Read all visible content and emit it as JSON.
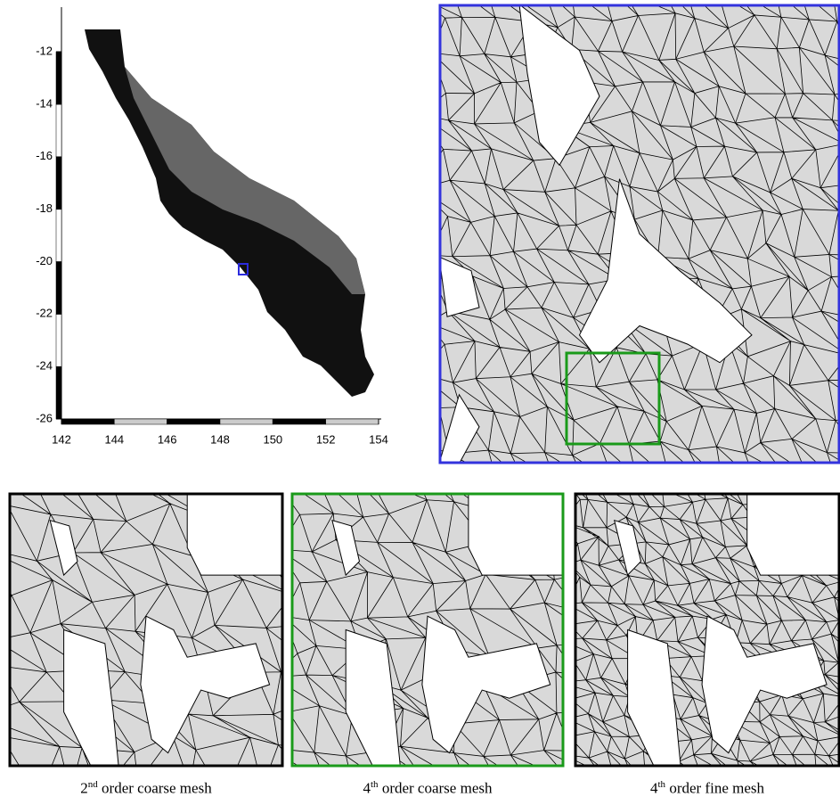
{
  "map": {
    "xlim": [
      142,
      154
    ],
    "ylim": [
      -26,
      -10.3
    ],
    "xticks": [
      142,
      144,
      146,
      148,
      150,
      152,
      154
    ],
    "yticks": [
      -26,
      -24,
      -22,
      -20,
      -18,
      -16,
      -14,
      -12
    ]
  },
  "captions": [
    {
      "order": "2",
      "suffix": "nd",
      "label": "order coarse mesh"
    },
    {
      "order": "4",
      "suffix": "th",
      "label": "order coarse mesh"
    },
    {
      "order": "4",
      "suffix": "th",
      "label": "order fine mesh"
    }
  ]
}
